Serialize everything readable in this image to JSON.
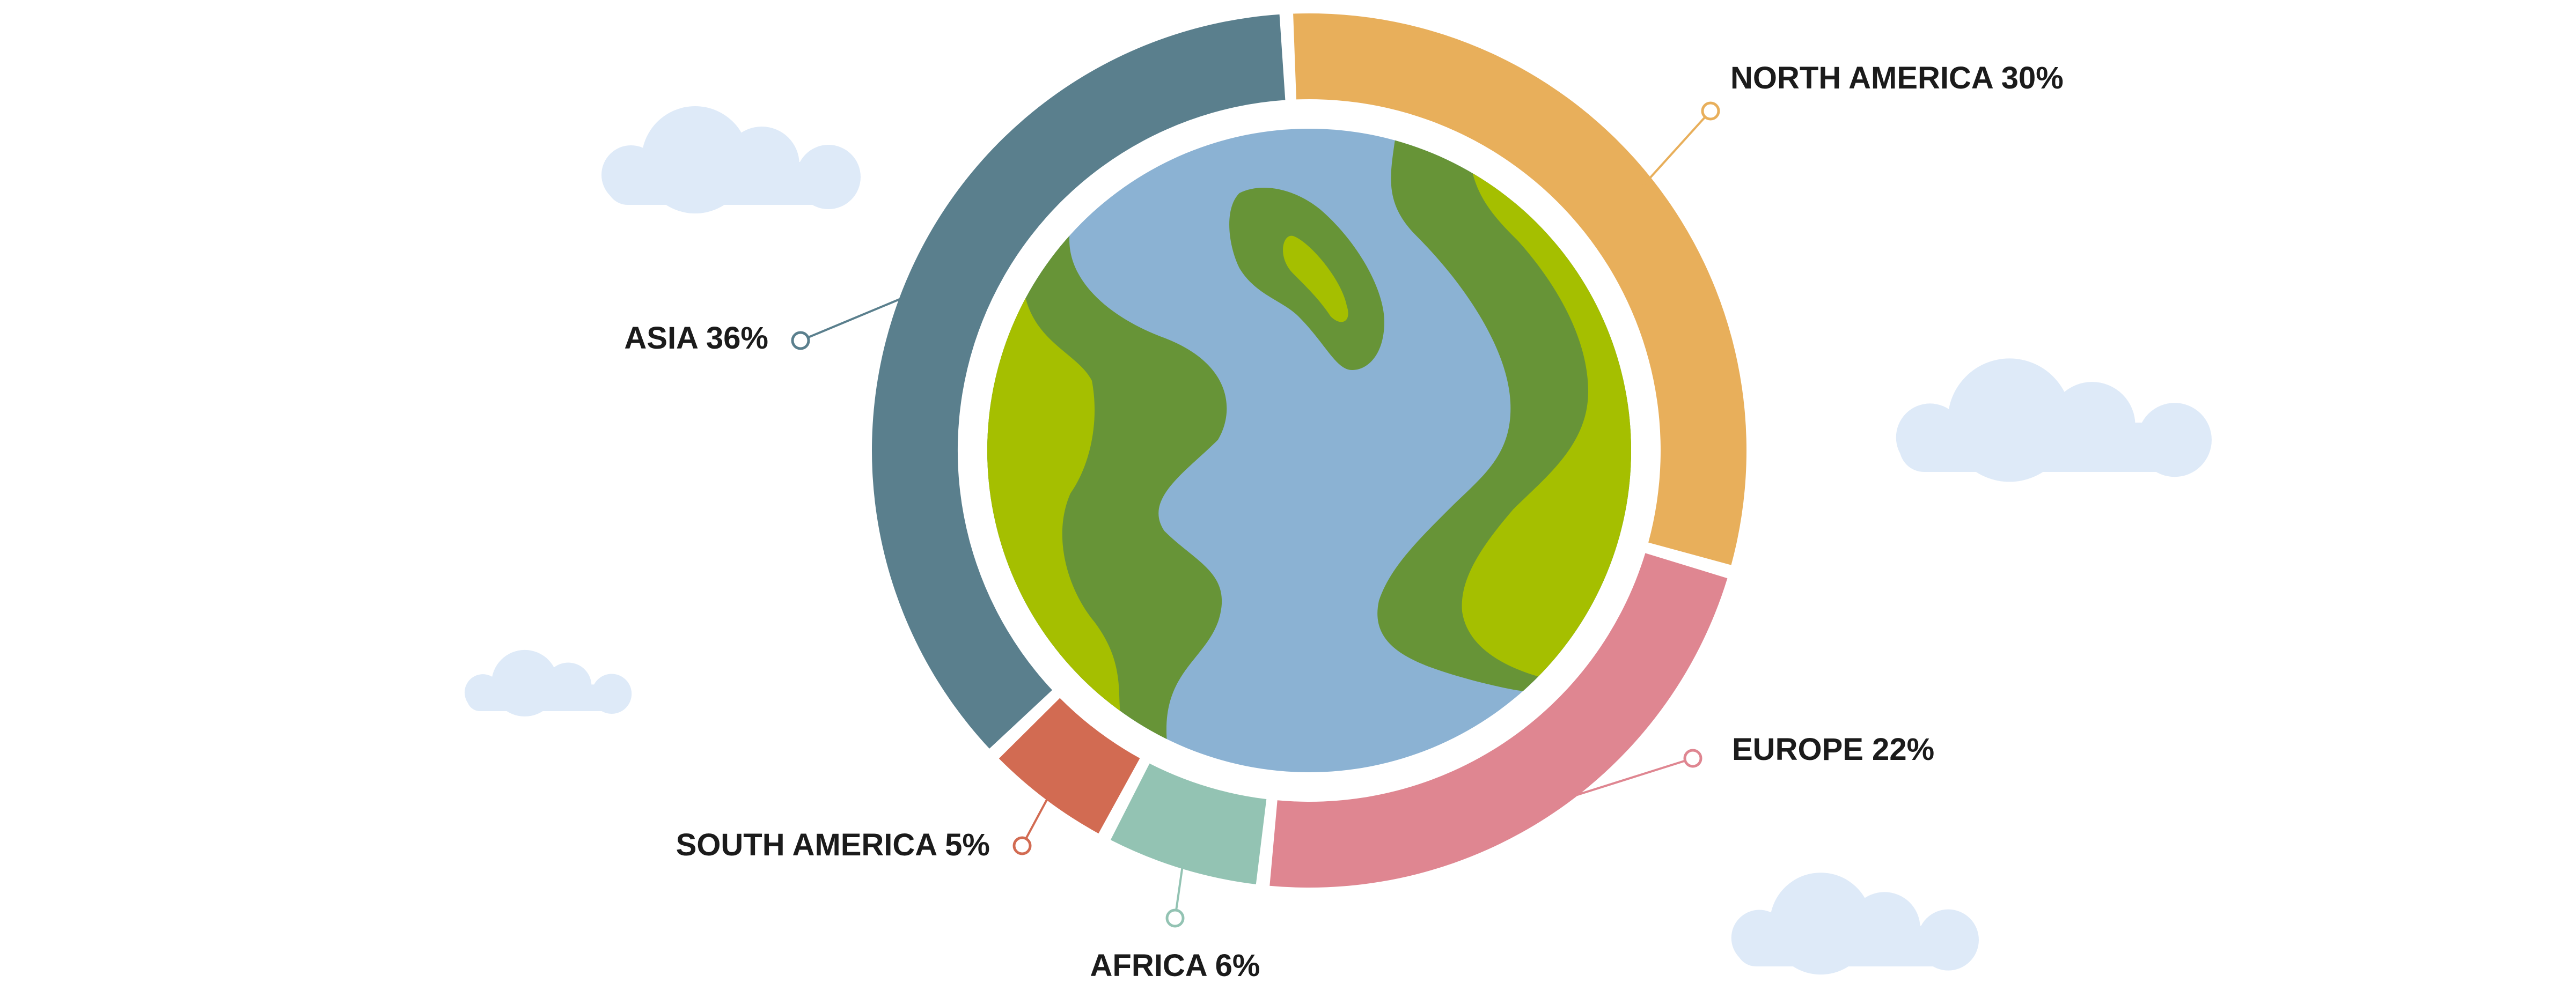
{
  "chart_data": {
    "type": "pie",
    "variant": "donut",
    "title": "",
    "categories": [
      "NORTH AMERICA",
      "EUROPE",
      "AFRICA",
      "SOUTH AMERICA",
      "ASIA"
    ],
    "values": [
      30,
      22,
      6,
      5,
      36
    ],
    "unit": "%",
    "labels": [
      "NORTH AMERICA 30%",
      "EUROPE 22%",
      "AFRICA 6%",
      "SOUTH AMERICA 5%",
      "ASIA 36%"
    ],
    "colors": [
      "#E8AF5B",
      "#DF8691",
      "#93C3B3",
      "#D26B52",
      "#5A7F8D"
    ],
    "legend": "none",
    "grid": false
  },
  "illustration": {
    "center_icon": "globe-icon",
    "ocean_color": "#8BB2D3",
    "land_dark_color": "#679437",
    "land_light_color": "#A5BF00",
    "cloud_color": "#DEEAF8"
  }
}
